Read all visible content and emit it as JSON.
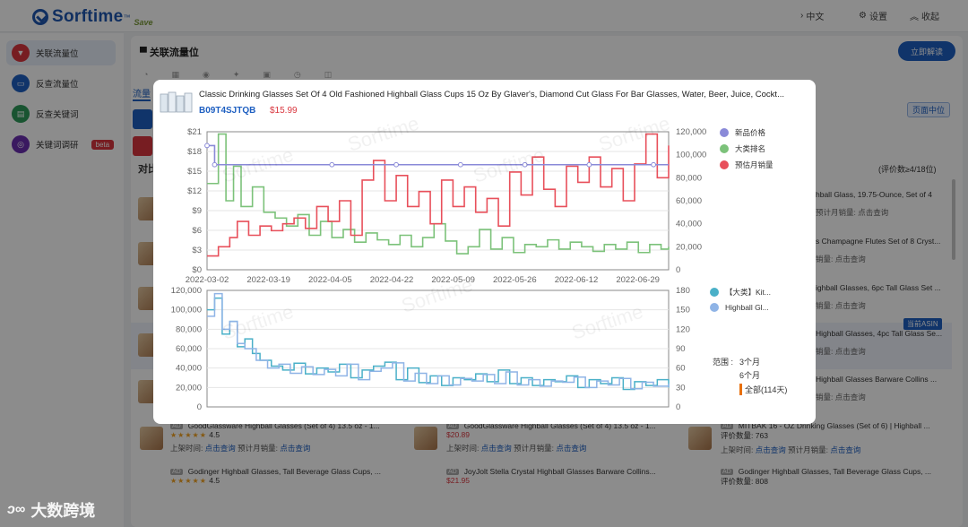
{
  "app": {
    "logo": "Sorftime",
    "tagline": "Save",
    "nav": [
      {
        "label": "中文",
        "icon": "translate-icon"
      },
      {
        "label": "设置",
        "icon": "gear-icon"
      },
      {
        "label": "收起",
        "icon": "collapse-icon"
      }
    ]
  },
  "sidebar": {
    "items": [
      {
        "label": "关联流量位",
        "color": "#d9363e",
        "active": true
      },
      {
        "label": "反查流量位",
        "color": "#1e5fc1",
        "active": false
      },
      {
        "label": "反查关键词",
        "color": "#2e9a5a",
        "active": false
      },
      {
        "label": "关键词调研",
        "color": "#6a2fb0",
        "active": false,
        "badge": "beta"
      }
    ]
  },
  "main": {
    "title": "关联流量位",
    "analyze_button": "立即解读",
    "tab_label": "流量",
    "compare_label": "对比",
    "page_mid_badge": "页面中位",
    "comment_count": "(评价数≥4/18位)",
    "current_asin_badge": "当前ASIN",
    "right_list": [
      {
        "title": "hball Glass, 19.75-Ounce, Set of 4",
        "sales_label": "预计月销量:",
        "sales_value": "点击查询"
      },
      {
        "title": "s Champagne Flutes Set of 8 Cryst...",
        "sales_label": "销量:",
        "sales_value": "点击查询"
      },
      {
        "title": "ighball Glasses, 6pc Tall Glass Set ...",
        "sales_label": "销量:",
        "sales_value": "点击查询"
      },
      {
        "title": "Highball Glasses, 4pc Tall Glass Se...",
        "sales_label": "销量:",
        "sales_value": "点击查询"
      },
      {
        "title": "Highball Glasses Barware Collins ...",
        "sales_label": "销量:",
        "sales_value": "点击查询"
      }
    ],
    "bottom_cards": [
      {
        "title": "GoodGlassware Highball Glasses (Set of 4) 13.5 oz - 1...",
        "rating": "4.5",
        "listed_label": "上架时间:",
        "listed_value": "点击查询",
        "sales_label": "预计月销量:",
        "sales_value": "点击查询"
      },
      {
        "title": "GoodGlassware Highball Glasses (Set of 4) 13.5 oz - 1...",
        "price": "$20.89",
        "listed_label": "上架时间:",
        "listed_value": "点击查询",
        "sales_label": "预计月销量:",
        "sales_value": "点击查询"
      },
      {
        "title": "MITBAK 16 - OZ Drinking Glasses (Set of 6) | Highball ...",
        "reviews_label": "评价数量:",
        "reviews_value": "763",
        "listed_label": "上架时间:",
        "listed_value": "点击查询",
        "sales_label": "预计月销量:",
        "sales_value": "点击查询"
      },
      {
        "title": "Godinger Highball Glasses, Tall Beverage Glass Cups, ...",
        "rating": "4.5"
      },
      {
        "title": "JoyJolt Stella Crystal Highball Glasses Barware Collins...",
        "price": "$21.95"
      },
      {
        "title": "Godinger Highball Glasses, Tall Beverage Glass Cups, ...",
        "reviews_label": "评价数量:",
        "reviews_value": "808"
      }
    ]
  },
  "modal": {
    "product_title": "Classic Drinking Glasses Set Of 4 Old Fashioned Highball Glass Cups 15 Oz By Glaver's, Diamond Cut Glass For Bar Glasses, Water, Beer, Juice, Cockt...",
    "asin": "B09T4SJTQB",
    "price": "$15.99",
    "legend_top": [
      {
        "label": "新品价格",
        "color": "#8a8ad8"
      },
      {
        "label": "大类排名",
        "color": "#7cc27a"
      },
      {
        "label": "预估月销量",
        "color": "#e8505b"
      }
    ],
    "legend_bottom": [
      {
        "label": "【大类】Kit...",
        "color": "#4ab0c8"
      },
      {
        "label": "Highball Gl...",
        "color": "#8fb4e6"
      }
    ],
    "range_label": "范围",
    "range_options": [
      "3个月",
      "6个月",
      "全部(114天)"
    ],
    "range_selected": "全部(114天)"
  },
  "chart_data": [
    {
      "type": "line",
      "title": "",
      "x_ticks": [
        "2022-03-02",
        "2022-03-19",
        "2022-04-05",
        "2022-04-22",
        "2022-05-09",
        "2022-05-26",
        "2022-06-12",
        "2022-06-29"
      ],
      "y_left_ticks": [
        "$0",
        "$3",
        "$6",
        "$9",
        "$12",
        "$15",
        "$18",
        "$21"
      ],
      "y_left_range": [
        0,
        21
      ],
      "y_right_ticks": [
        "0",
        "20,000",
        "40,000",
        "60,000",
        "80,000",
        "100,000",
        "120,000"
      ],
      "y_right_range": [
        0,
        120000
      ],
      "series": [
        {
          "name": "新品价格",
          "axis": "left",
          "x_day": [
            0,
            2,
            33,
            50,
            67,
            84,
            101,
            118,
            122
          ],
          "values": [
            18.9,
            15.99,
            15.99,
            15.99,
            15.99,
            15.99,
            15.99,
            15.99,
            15.99
          ]
        },
        {
          "name": "大类排名",
          "axis": "right",
          "x_day": [
            0,
            3,
            5,
            7,
            9,
            12,
            15,
            18,
            21,
            24,
            27,
            30,
            33,
            36,
            39,
            42,
            45,
            48,
            51,
            54,
            57,
            60,
            63,
            66,
            69,
            72,
            75,
            78,
            81,
            84,
            87,
            90,
            93,
            96,
            99,
            102,
            105,
            108,
            111,
            114,
            117,
            120,
            122
          ],
          "values": [
            75000,
            118000,
            60000,
            90000,
            55000,
            72000,
            50000,
            45000,
            38000,
            48000,
            30000,
            42000,
            28000,
            35000,
            24000,
            32000,
            26000,
            22000,
            30000,
            20000,
            28000,
            40000,
            25000,
            14000,
            20000,
            35000,
            18000,
            28000,
            15000,
            22000,
            20000,
            26000,
            18000,
            24000,
            20000,
            16000,
            22000,
            18000,
            24000,
            15000,
            22000,
            18000,
            20000
          ]
        },
        {
          "name": "预估月销量",
          "axis": "right",
          "x_day": [
            0,
            3,
            6,
            8,
            11,
            14,
            17,
            20,
            23,
            26,
            29,
            32,
            35,
            38,
            41,
            44,
            47,
            50,
            53,
            56,
            59,
            62,
            65,
            68,
            71,
            74,
            77,
            80,
            83,
            86,
            89,
            92,
            95,
            98,
            101,
            104,
            107,
            110,
            113,
            116,
            119,
            122
          ],
          "values": [
            12000,
            20000,
            28000,
            42000,
            30000,
            38000,
            34000,
            40000,
            45000,
            36000,
            55000,
            42000,
            60000,
            30000,
            78000,
            95000,
            60000,
            82000,
            55000,
            68000,
            40000,
            78000,
            55000,
            72000,
            50000,
            62000,
            38000,
            85000,
            65000,
            98000,
            70000,
            55000,
            90000,
            76000,
            98000,
            72000,
            88000,
            60000,
            92000,
            118000,
            80000,
            108000
          ]
        }
      ]
    },
    {
      "type": "line",
      "title": "",
      "y_left_ticks": [
        "0",
        "20,000",
        "40,000",
        "60,000",
        "80,000",
        "100,000",
        "120,000"
      ],
      "y_left_range": [
        0,
        120000
      ],
      "y_right_ticks": [
        "0",
        "30",
        "60",
        "90",
        "120",
        "150",
        "180"
      ],
      "y_right_range": [
        0,
        180
      ],
      "series": [
        {
          "name": "【大类】Kit...",
          "axis": "left",
          "x_day": [
            0,
            2,
            4,
            6,
            8,
            10,
            12,
            14,
            17,
            20,
            23,
            26,
            29,
            32,
            35,
            38,
            41,
            44,
            47,
            50,
            53,
            56,
            59,
            62,
            65,
            68,
            71,
            74,
            77,
            80,
            83,
            86,
            89,
            92,
            95,
            98,
            101,
            104,
            107,
            110,
            113,
            116,
            119,
            122
          ],
          "values": [
            100000,
            112000,
            75000,
            88000,
            62000,
            70000,
            55000,
            48000,
            42000,
            38000,
            45000,
            34000,
            40000,
            36000,
            44000,
            30000,
            38000,
            42000,
            46000,
            28000,
            40000,
            25000,
            32000,
            22000,
            30000,
            28000,
            34000,
            26000,
            38000,
            24000,
            30000,
            22000,
            28000,
            26000,
            32000,
            20000,
            28000,
            24000,
            30000,
            18000,
            26000,
            22000,
            28000,
            20000
          ]
        },
        {
          "name": "Highball Gl...",
          "axis": "right",
          "x_day": [
            0,
            2,
            4,
            6,
            8,
            10,
            13,
            16,
            19,
            22,
            25,
            28,
            31,
            34,
            37,
            40,
            43,
            46,
            49,
            52,
            55,
            58,
            61,
            64,
            67,
            70,
            73,
            76,
            79,
            82,
            85,
            88,
            91,
            94,
            97,
            100,
            103,
            106,
            109,
            112,
            115,
            118,
            122
          ],
          "values": [
            140,
            175,
            120,
            132,
            98,
            90,
            72,
            60,
            66,
            52,
            62,
            50,
            58,
            48,
            66,
            42,
            55,
            60,
            68,
            40,
            52,
            36,
            48,
            34,
            44,
            40,
            50,
            36,
            54,
            34,
            42,
            32,
            40,
            38,
            46,
            30,
            40,
            34,
            44,
            28,
            38,
            32,
            36
          ]
        }
      ]
    }
  ]
}
